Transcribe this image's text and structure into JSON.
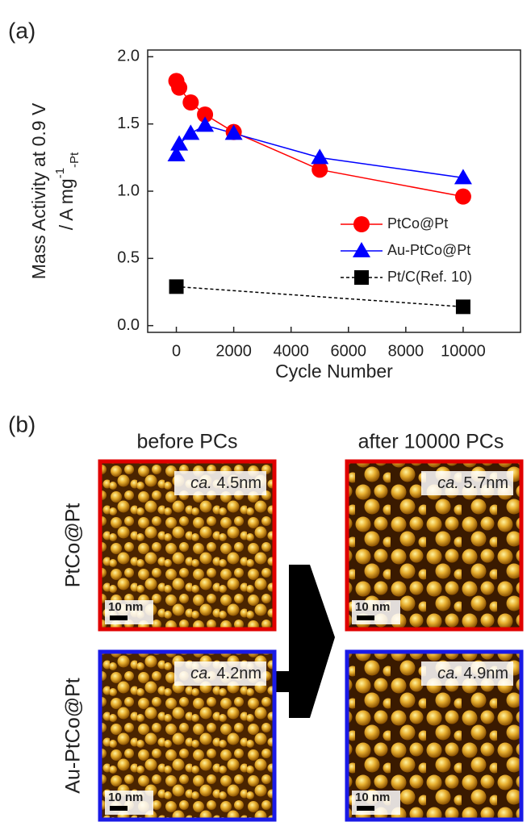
{
  "chart_data": {
    "type": "line",
    "panel_label": "(a)",
    "xlabel": "Cycle Number",
    "ylabel": {
      "line1": "Mass Activity at 0.9 V",
      "line2": "/ A mg",
      "sup": "-1",
      "sub": "-Pt"
    },
    "xlim": [
      -1000,
      12000
    ],
    "xticks": [
      0,
      2000,
      4000,
      6000,
      8000,
      10000
    ],
    "ylim": [
      -0.05,
      2.05
    ],
    "yticks": [
      {
        "value": 0,
        "label": "0.0"
      },
      {
        "value": 0.5,
        "label": "0.5"
      },
      {
        "value": 1,
        "label": "1.0"
      },
      {
        "value": 1.5,
        "label": "1.5"
      },
      {
        "value": 2,
        "label": "2.0"
      }
    ],
    "series": [
      {
        "name": "PtCo@Pt",
        "color": "#ff0000",
        "marker": "circle",
        "dash": false,
        "x": [
          0,
          100,
          500,
          1000,
          2000,
          5000,
          10000
        ],
        "values": [
          1.82,
          1.77,
          1.66,
          1.57,
          1.44,
          1.16,
          0.96
        ]
      },
      {
        "name": "Au-PtCo@Pt",
        "color": "#0000ff",
        "marker": "triangle",
        "dash": false,
        "x": [
          0,
          100,
          500,
          1000,
          2000,
          5000,
          10000
        ],
        "values": [
          1.27,
          1.35,
          1.43,
          1.49,
          1.43,
          1.25,
          1.1
        ]
      },
      {
        "name": "Pt/C(Ref. 10)",
        "color": "#000000",
        "marker": "square",
        "dash": true,
        "x": [
          0,
          10000
        ],
        "values": [
          0.29,
          0.14
        ]
      }
    ]
  },
  "panel_b": {
    "panel_label": "(b)",
    "columns": [
      "before PCs",
      "after 10000 PCs"
    ],
    "rows": [
      {
        "label": "PtCo@Pt",
        "border_color": "#e00000"
      },
      {
        "label": "Au-PtCo@Pt",
        "border_color": "#1a1ae6"
      }
    ],
    "images": [
      {
        "row": 0,
        "col": 0,
        "prefix": "ca.",
        "size": " 4.5nm",
        "scale": "10 nm"
      },
      {
        "row": 0,
        "col": 1,
        "prefix": "ca.",
        "size": " 5.7nm",
        "scale": "10 nm"
      },
      {
        "row": 1,
        "col": 0,
        "prefix": "ca.",
        "size": " 4.2nm",
        "scale": "10 nm"
      },
      {
        "row": 1,
        "col": 1,
        "prefix": "ca.",
        "size": " 4.9nm",
        "scale": "10 nm"
      }
    ]
  }
}
